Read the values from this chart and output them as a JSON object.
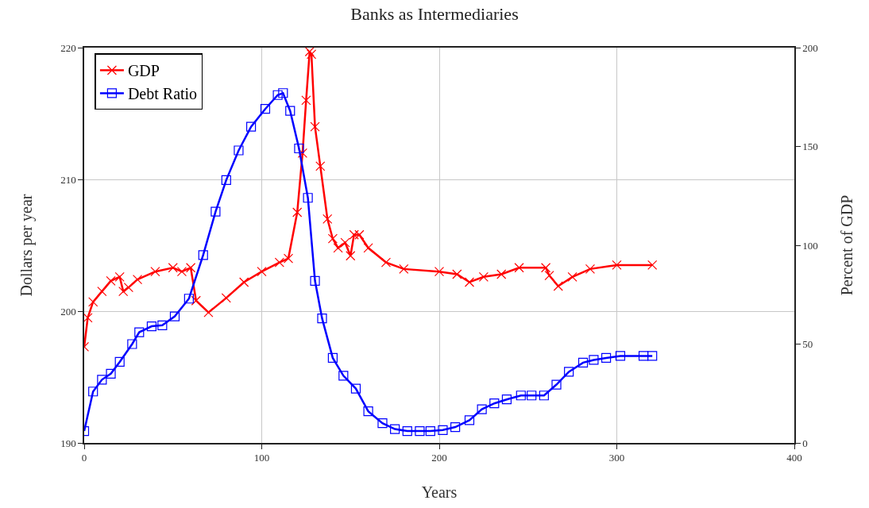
{
  "chart_data": {
    "type": "line",
    "title": "Banks as Intermediaries",
    "xlabel": "Years",
    "ylabel": "Dollars per year",
    "y2label": "Percent of GDP",
    "xlim": [
      0,
      400
    ],
    "xticks": [
      0,
      100,
      200,
      300,
      400
    ],
    "ylim": [
      190,
      220
    ],
    "yticks": [
      190,
      200,
      210,
      220
    ],
    "y2lim": [
      0,
      200
    ],
    "y2ticks": [
      0,
      50,
      100,
      150,
      200
    ],
    "grid": true,
    "legend": "top left",
    "line_style": "solid",
    "series": [
      {
        "name": "GDP",
        "color": "#ff0000",
        "marker": "cross",
        "x": [
          0,
          2,
          5,
          10,
          15,
          20,
          22,
          25,
          30,
          40,
          50,
          55,
          60,
          63,
          70,
          80,
          90,
          100,
          110,
          115,
          120,
          123,
          125,
          127,
          128,
          130,
          133,
          137,
          140,
          143,
          147,
          150,
          152,
          155,
          160,
          170,
          180,
          200,
          210,
          217,
          225,
          235,
          245,
          260,
          262,
          267,
          275,
          285,
          300,
          320
        ],
        "values": [
          197.3,
          199.5,
          200.7,
          201.5,
          202.3,
          202.6,
          201.5,
          201.8,
          202.4,
          203.0,
          203.3,
          203.0,
          203.3,
          200.8,
          199.9,
          201.0,
          202.2,
          203.0,
          203.7,
          204.0,
          207.5,
          212.0,
          216.0,
          219.7,
          219.5,
          214.0,
          211.0,
          207.0,
          205.5,
          204.8,
          205.2,
          204.2,
          205.8,
          205.8,
          204.8,
          203.7,
          203.2,
          203.0,
          202.8,
          202.2,
          202.6,
          202.8,
          203.3,
          203.3,
          202.7,
          201.9,
          202.6,
          203.2,
          203.5,
          203.5
        ]
      },
      {
        "name": "Debt Ratio",
        "color": "#0000ff",
        "marker": "square",
        "axis": "y2",
        "x": [
          0,
          5,
          10,
          15,
          20,
          27,
          31,
          38,
          44,
          51,
          59,
          67,
          74,
          80,
          87,
          94,
          102,
          109,
          112,
          116,
          121,
          126,
          130,
          134,
          140,
          146,
          153,
          160,
          168,
          175,
          182,
          189,
          195,
          202,
          209,
          217,
          224,
          231,
          238,
          246,
          252,
          259,
          266,
          273,
          281,
          287,
          294,
          302,
          315,
          320
        ],
        "values": [
          6,
          26,
          32,
          35,
          41,
          50,
          56,
          59,
          59.5,
          64,
          73,
          95,
          117,
          133,
          148,
          160,
          169,
          176,
          177,
          168,
          149,
          124,
          82,
          63,
          43,
          34,
          27.5,
          16,
          10,
          7,
          6,
          6,
          6,
          6.5,
          8,
          11.5,
          17,
          20,
          22,
          24,
          24,
          24,
          29.5,
          36,
          40.6,
          42,
          43,
          44,
          44,
          44
        ]
      }
    ]
  }
}
